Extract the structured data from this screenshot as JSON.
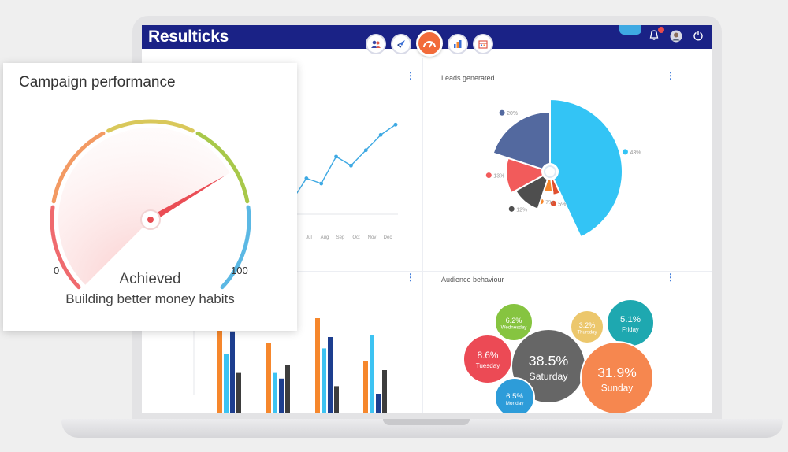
{
  "app": {
    "logo": "Resulticks",
    "nav": [
      {
        "icon": "audience-icon"
      },
      {
        "icon": "rocket-icon"
      },
      {
        "icon": "gauge-icon",
        "active": true
      },
      {
        "icon": "bar-chart-icon"
      },
      {
        "icon": "calendar-icon"
      }
    ],
    "header_icons": [
      "notification-icon",
      "avatar",
      "power-icon"
    ],
    "brand_color": "#1a2286",
    "accent_color": "#f26b3a"
  },
  "line_panel": {
    "x_ticks": [
      "Jul",
      "Aug",
      "Sep",
      "Oct",
      "Nov",
      "Dec"
    ],
    "chart_data": {
      "type": "line",
      "x": [
        1,
        2,
        3,
        4,
        5,
        6,
        7,
        8
      ],
      "y": [
        10,
        28,
        24,
        45,
        38,
        50,
        62,
        70
      ],
      "color": "#3ea9e3"
    }
  },
  "leads_panel": {
    "title": "Leads generated",
    "chart_data": {
      "type": "pie",
      "slices": [
        {
          "label": "43%",
          "value": 43,
          "color": "#33c4f5"
        },
        {
          "label": "5%",
          "value": 5,
          "color": "#e0502f"
        },
        {
          "label": "7%",
          "value": 7,
          "color": "#f6872c"
        },
        {
          "label": "12%",
          "value": 12,
          "color": "#4e4e4e"
        },
        {
          "label": "13%",
          "value": 13,
          "color": "#f25b5b"
        },
        {
          "label": "20%",
          "value": 20,
          "color": "#53699f"
        }
      ]
    }
  },
  "bar_panel": {
    "chart_data": {
      "type": "bar",
      "groups": 4,
      "series": [
        {
          "values": [
            0.9,
            0.74,
            1.0,
            0.55
          ],
          "color": "#f6872c"
        },
        {
          "values": [
            0.62,
            0.42,
            0.68,
            0.82
          ],
          "color": "#3dc3f2"
        },
        {
          "values": [
            0.86,
            0.36,
            0.8,
            0.2
          ],
          "color": "#1d3e8f"
        },
        {
          "values": [
            0.42,
            0.5,
            0.28,
            0.45
          ],
          "color": "#3d3d3d"
        }
      ]
    }
  },
  "audience_panel": {
    "title": "Audience behaviour",
    "chart_data": {
      "type": "bubble",
      "bubbles": [
        {
          "value": "6.2",
          "unit": "%",
          "label": "Wednesday",
          "color": "#86c440"
        },
        {
          "value": "3.2",
          "unit": "%",
          "label": "Thursday",
          "color": "#ecc76c"
        },
        {
          "value": "5.1",
          "unit": "%",
          "label": "Friday",
          "color": "#1ea8b0"
        },
        {
          "value": "8.6",
          "unit": "%",
          "label": "Tuesday",
          "color": "#ec4a55"
        },
        {
          "value": "38.5",
          "unit": "%",
          "label": "Saturday",
          "color": "#666666"
        },
        {
          "value": "31.9",
          "unit": "%",
          "label": "Sunday",
          "color": "#f6874f"
        },
        {
          "value": "6.5",
          "unit": "%",
          "label": "Monday",
          "color": "#2d9cd9"
        }
      ]
    }
  },
  "gauge_card": {
    "title": "Campaign performance",
    "min": "0",
    "max": "100",
    "value": 72,
    "status": "Achieved",
    "subtitle": "Building better money habits"
  }
}
